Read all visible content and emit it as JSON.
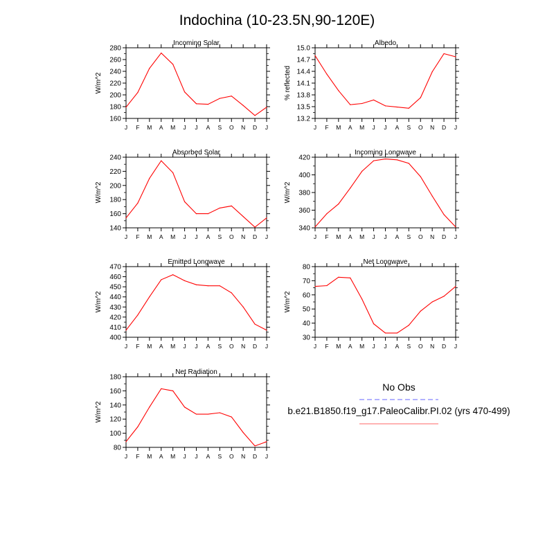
{
  "figure": {
    "title": "Indochina (10-23.5N,90-120E)"
  },
  "legend": {
    "obs_label": "No Obs",
    "model_label": "b.e21.B1850.f19_g17.PaleoCalibr.PI.02 (yrs 470-499)",
    "obs_color": "#9999ff",
    "model_color": "#ff9999"
  },
  "line_color": "#ff0000",
  "chart_data": [
    {
      "type": "line",
      "title": "Incoming Solar",
      "ylabel": "W/m^2",
      "xlabel": "",
      "categories": [
        "J",
        "F",
        "M",
        "A",
        "M",
        "J",
        "J",
        "A",
        "S",
        "O",
        "N",
        "D",
        "J"
      ],
      "ylim": [
        160,
        280
      ],
      "yticks": [
        160,
        180,
        200,
        220,
        240,
        260,
        280
      ],
      "ytick_labels": [
        "160",
        "180",
        "200",
        "220",
        "240",
        "260",
        "280"
      ],
      "series": [
        {
          "values": [
            179,
            204,
            245,
            271,
            252,
            205,
            185,
            184,
            194,
            198,
            182,
            165,
            179
          ]
        }
      ]
    },
    {
      "type": "line",
      "title": "Albedo",
      "ylabel": "% reflected",
      "xlabel": "",
      "categories": [
        "J",
        "F",
        "M",
        "A",
        "M",
        "J",
        "J",
        "A",
        "S",
        "O",
        "N",
        "D",
        "J"
      ],
      "ylim": [
        13.2,
        15.0
      ],
      "yticks": [
        13.2,
        13.5,
        13.8,
        14.1,
        14.4,
        14.7,
        15.0
      ],
      "ytick_labels": [
        "13.2",
        "13.5",
        "13.8",
        "14.1",
        "14.4",
        "14.7",
        "15.0"
      ],
      "series": [
        {
          "values": [
            14.8,
            14.33,
            13.91,
            13.55,
            13.58,
            13.67,
            13.52,
            13.49,
            13.46,
            13.73,
            14.39,
            14.85,
            14.77
          ]
        }
      ]
    },
    {
      "type": "line",
      "title": "Absorbed Solar",
      "ylabel": "W/m^2",
      "xlabel": "",
      "categories": [
        "J",
        "F",
        "M",
        "A",
        "M",
        "J",
        "J",
        "A",
        "S",
        "O",
        "N",
        "D",
        "J"
      ],
      "ylim": [
        140,
        240
      ],
      "yticks": [
        140,
        160,
        180,
        200,
        220,
        240
      ],
      "ytick_labels": [
        "140",
        "160",
        "180",
        "200",
        "220",
        "240"
      ],
      "series": [
        {
          "values": [
            154,
            175,
            210,
            235,
            218,
            177,
            160,
            160,
            168,
            171,
            156,
            141,
            154
          ]
        }
      ]
    },
    {
      "type": "line",
      "title": "Incoming Longwave",
      "ylabel": "W/m^2",
      "xlabel": "",
      "categories": [
        "J",
        "F",
        "M",
        "A",
        "M",
        "J",
        "J",
        "A",
        "S",
        "O",
        "N",
        "D",
        "J"
      ],
      "ylim": [
        340,
        420
      ],
      "yticks": [
        340,
        360,
        380,
        400,
        420
      ],
      "ytick_labels": [
        "340",
        "360",
        "380",
        "400",
        "420"
      ],
      "series": [
        {
          "values": [
            341,
            356,
            367,
            385,
            404,
            416,
            418,
            417,
            413,
            398,
            376,
            355,
            341
          ]
        }
      ]
    },
    {
      "type": "line",
      "title": "Emitted Longwave",
      "ylabel": "W/m^2",
      "xlabel": "",
      "categories": [
        "J",
        "F",
        "M",
        "A",
        "M",
        "J",
        "J",
        "A",
        "S",
        "O",
        "N",
        "D",
        "J"
      ],
      "ylim": [
        400,
        470
      ],
      "yticks": [
        400,
        410,
        420,
        430,
        440,
        450,
        460,
        470
      ],
      "ytick_labels": [
        "400",
        "410",
        "420",
        "430",
        "440",
        "450",
        "460",
        "470"
      ],
      "series": [
        {
          "values": [
            407,
            422,
            440,
            457,
            462,
            456,
            452,
            451,
            451,
            444,
            430,
            413,
            407
          ]
        }
      ]
    },
    {
      "type": "line",
      "title": "Net Longwave",
      "ylabel": "W/m^2",
      "xlabel": "",
      "categories": [
        "J",
        "F",
        "M",
        "A",
        "M",
        "J",
        "J",
        "A",
        "S",
        "O",
        "N",
        "D",
        "J"
      ],
      "ylim": [
        30,
        80
      ],
      "yticks": [
        30,
        40,
        50,
        60,
        70,
        80
      ],
      "ytick_labels": [
        "30",
        "40",
        "50",
        "60",
        "70",
        "80"
      ],
      "series": [
        {
          "values": [
            66,
            66.5,
            72.5,
            72,
            57,
            39.5,
            33,
            33,
            38.5,
            48.5,
            55,
            59,
            66
          ]
        }
      ]
    },
    {
      "type": "line",
      "title": "Net Radiation",
      "ylabel": "W/m^2",
      "xlabel": "",
      "categories": [
        "J",
        "F",
        "M",
        "A",
        "M",
        "J",
        "J",
        "A",
        "S",
        "O",
        "N",
        "D",
        "J"
      ],
      "ylim": [
        80,
        180
      ],
      "yticks": [
        80,
        100,
        120,
        140,
        160,
        180
      ],
      "ytick_labels": [
        "80",
        "100",
        "120",
        "140",
        "160",
        "180"
      ],
      "series": [
        {
          "values": [
            88,
            109,
            137,
            163,
            160,
            137,
            127,
            127,
            129,
            123,
            101,
            82,
            88
          ]
        }
      ]
    }
  ]
}
